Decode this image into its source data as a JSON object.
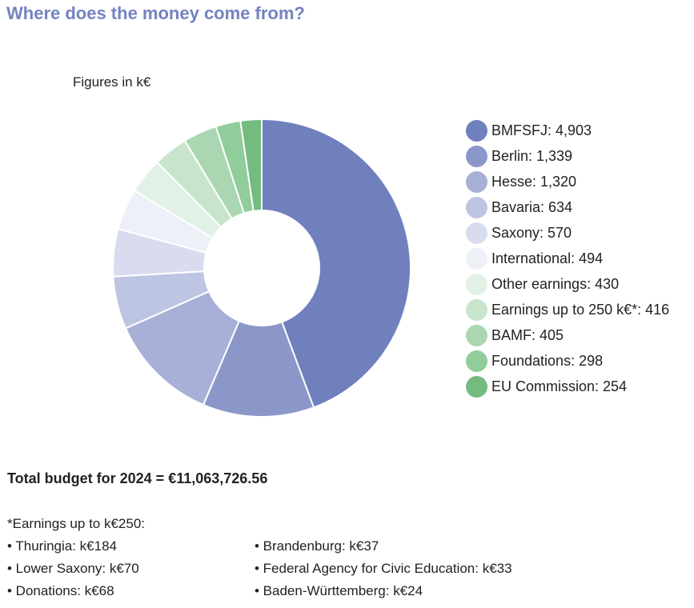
{
  "title": "Where does the money come from?",
  "chart_data": {
    "type": "pie",
    "subtitle": "Figures in k€",
    "legend_position": "right",
    "slices": [
      {
        "label": "BMFSFJ",
        "value": 4903,
        "display": "4,903",
        "color": "#6f80bd"
      },
      {
        "label": "Berlin",
        "value": 1339,
        "display": "1,339",
        "color": "#8b97c8"
      },
      {
        "label": "Hesse",
        "value": 1320,
        "display": "1,320",
        "color": "#a7b0d6"
      },
      {
        "label": "Bavaria",
        "value": 634,
        "display": "634",
        "color": "#bec5e2"
      },
      {
        "label": "Saxony",
        "value": 570,
        "display": "570",
        "color": "#d8dcee"
      },
      {
        "label": "International",
        "value": 494,
        "display": "494",
        "color": "#eef0f7"
      },
      {
        "label": "Other earnings",
        "value": 430,
        "display": "430",
        "color": "#e2f1e5"
      },
      {
        "label": "Earnings up to 250 k€*",
        "value": 416,
        "display": "416",
        "color": "#c8e5cc"
      },
      {
        "label": "BAMF",
        "value": 405,
        "display": "405",
        "color": "#aad7b2"
      },
      {
        "label": "Foundations",
        "value": 298,
        "display": "298",
        "color": "#91cc9b"
      },
      {
        "label": "EU Commission",
        "value": 254,
        "display": "254",
        "color": "#74bb80"
      }
    ]
  },
  "total": "Total budget for 2024 = €11,063,726.56",
  "footnote": {
    "heading": "*Earnings up to k€250:",
    "items": [
      "• Thuringia: k€184",
      "• Lower Saxony: k€70",
      "• Donations: k€68",
      "• Brandenburg: k€37",
      "• Federal Agency for Civic Education: k€33",
      "• Baden-Württemberg: k€24"
    ]
  }
}
